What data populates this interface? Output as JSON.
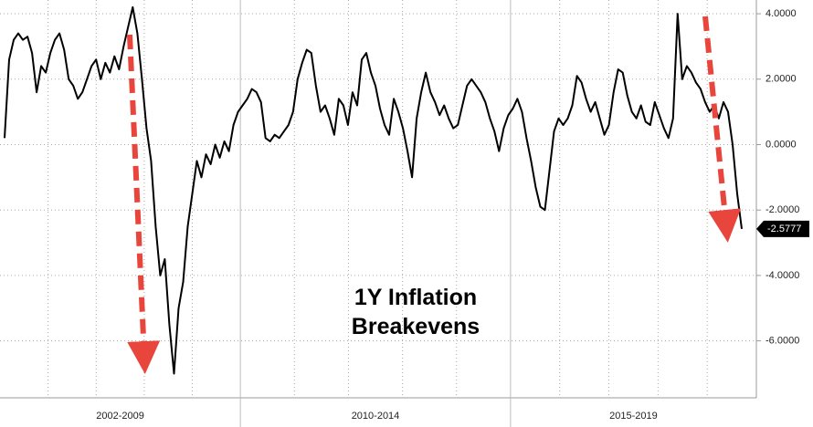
{
  "chart_data": {
    "type": "line",
    "title": "1Y Inflation Breakevens",
    "color": "#000000",
    "periods": [
      {
        "label": "2002-2009",
        "values": [
          0.2,
          2.6,
          3.2,
          3.4,
          3.2,
          3.3,
          2.8,
          1.6,
          2.4,
          2.2,
          2.8,
          3.2,
          3.4,
          2.9,
          2.0,
          1.8,
          1.4,
          1.6,
          2.0,
          2.4,
          2.6,
          2.0,
          2.5,
          2.2,
          2.7,
          2.3,
          3.0,
          3.6,
          4.2,
          3.4,
          2.0,
          0.5,
          -0.5,
          -2.5,
          -4.0,
          -3.5,
          -5.5,
          -7.0,
          -5.0,
          -4.2,
          -2.5,
          -1.5,
          -0.5,
          -1.0,
          -0.3,
          -0.6,
          0.0,
          -0.4,
          0.1,
          -0.2,
          0.6,
          1.0
        ]
      },
      {
        "label": "2010-2014",
        "values": [
          1.2,
          1.4,
          1.7,
          1.6,
          1.3,
          0.2,
          0.1,
          0.3,
          0.2,
          0.4,
          0.6,
          1.0,
          2.0,
          2.5,
          2.9,
          2.8,
          1.8,
          1.0,
          1.2,
          0.8,
          0.3,
          1.4,
          1.2,
          0.6,
          1.6,
          1.2,
          2.6,
          2.8,
          2.2,
          1.8,
          1.1,
          0.6,
          0.3,
          1.4,
          1.0,
          0.5,
          -0.2,
          -1.0,
          0.8,
          1.6,
          2.2,
          1.6,
          1.3,
          0.9,
          1.2,
          0.8,
          0.5,
          0.6,
          1.2,
          1.8,
          2.0,
          1.8,
          1.6,
          1.3,
          0.8,
          0.4,
          -0.2,
          0.5,
          0.9
        ]
      },
      {
        "label": "2015-2019",
        "values": [
          1.1,
          1.4,
          1.0,
          0.2,
          -0.5,
          -1.3,
          -1.9,
          -2.0,
          -0.8,
          0.4,
          0.8,
          0.6,
          0.8,
          1.2,
          2.1,
          1.9,
          1.4,
          1.0,
          1.3,
          0.8,
          0.3,
          0.6,
          1.6,
          2.3,
          2.2,
          1.5,
          1.0,
          0.8,
          1.2,
          0.7,
          0.6,
          1.3,
          0.9,
          0.5,
          0.2,
          0.8,
          4.0,
          2.0,
          2.4,
          2.2,
          1.9,
          1.7,
          1.3,
          1.0,
          1.2,
          0.8,
          1.3,
          1.0,
          0.0,
          -1.5,
          -2.5777
        ],
        "last_label": "-2.5777"
      }
    ],
    "ylim": [
      -7.74,
      4.42
    ],
    "yticks": [
      {
        "value": 4,
        "label": "4.0000"
      },
      {
        "value": 2,
        "label": "2.0000"
      },
      {
        "value": 0,
        "label": "0.0000"
      },
      {
        "value": -2,
        "label": "-2.0000"
      },
      {
        "value": -4,
        "label": "-4.0000"
      },
      {
        "value": -6,
        "label": "-6.0000"
      }
    ],
    "grid": true
  }
}
